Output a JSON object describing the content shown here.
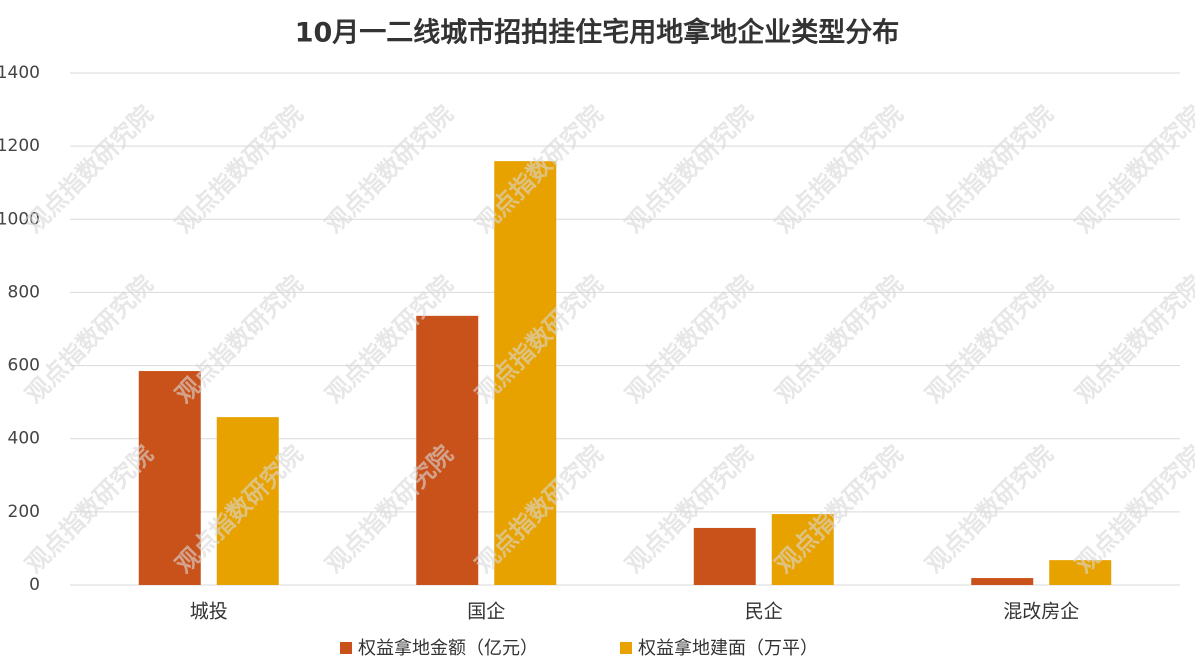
{
  "chart_data": {
    "type": "bar",
    "title": "10月一二线城市招拍挂住宅用地拿地企业类型分布",
    "categories": [
      "城投",
      "国企",
      "民企",
      "混改房企"
    ],
    "series": [
      {
        "name": "权益拿地金额（亿元）",
        "color": "#c9511a",
        "values": [
          585,
          736,
          156,
          19
        ]
      },
      {
        "name": "权益拿地建面（万平）",
        "color": "#e8a200",
        "values": [
          459,
          1159,
          194,
          68
        ]
      }
    ],
    "ylim": [
      0,
      1400
    ],
    "yticks": [
      0,
      200,
      400,
      600,
      800,
      1000,
      1200,
      1400
    ],
    "grid": true,
    "legend": "bottom",
    "watermark": "观点指数研究院"
  }
}
